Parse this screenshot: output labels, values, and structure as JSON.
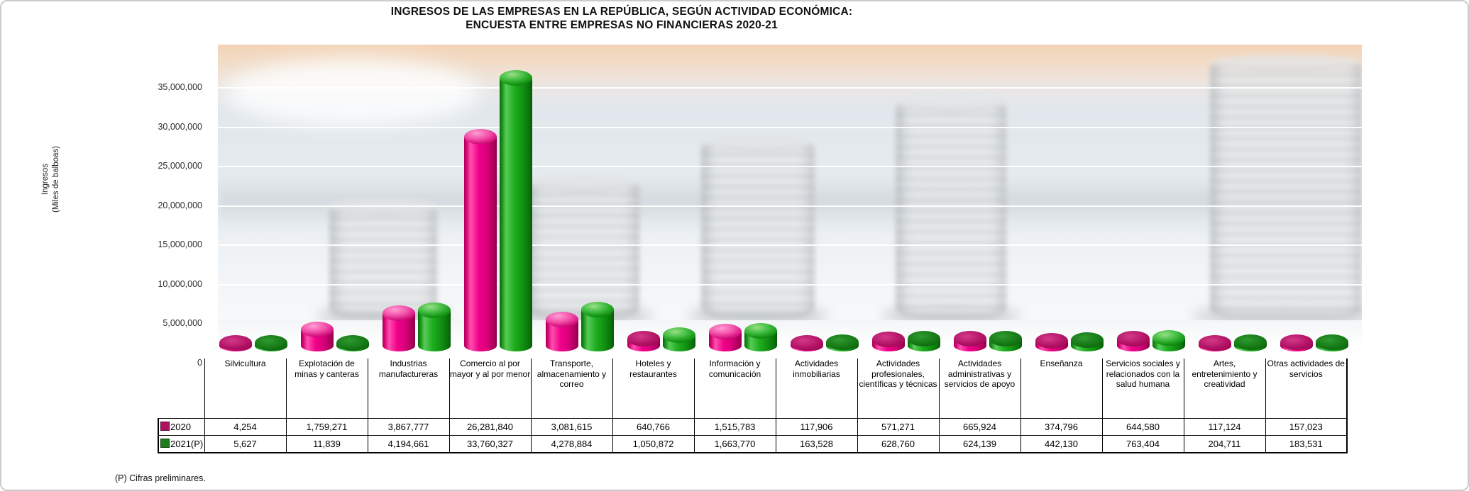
{
  "title": {
    "line1": "INGRESOS DE LAS EMPRESAS EN LA REPÚBLICA, SEGÚN ACTIVIDAD ECONÓMICA:",
    "line2": "ENCUESTA ENTRE EMPRESAS NO FINANCIERAS 2020-21"
  },
  "y_axis": {
    "title_line1": "Ingresos",
    "title_line2": "(Miles de balboas)",
    "tick_labels": [
      "0",
      "5,000,000",
      "10,000,000",
      "15,000,000",
      "20,000,000",
      "25,000,000",
      "30,000,000",
      "35,000,000"
    ]
  },
  "footnote": "(P) Cifras preliminares.",
  "chart_data": {
    "type": "bar",
    "title": "INGRESOS DE LAS EMPRESAS EN LA REPÚBLICA, SEGÚN ACTIVIDAD ECONÓMICA: ENCUESTA ENTRE EMPRESAS NO FINANCIERAS 2020-21",
    "xlabel": "",
    "ylabel": "Ingresos (Miles de balboas)",
    "ylim": [
      0,
      35000000
    ],
    "ytick_step": 5000000,
    "grid": true,
    "legend_position": "table-left",
    "background": "faded photo of coin stacks",
    "categories": [
      "Silvicultura",
      "Explotación de minas y canteras",
      "Industrias manufactureras",
      "Comercio al por mayor y al por menor",
      "Transporte, almacenamiento y correo",
      "Hoteles y restaurantes",
      "Información y comunicación",
      "Actividades inmobiliarias",
      "Actividades profesionales, científicas y técnicas",
      "Actividades administrativas y servicios de apoyo",
      "Enseñanza",
      "Servicios sociales y relacionados con la salud humana",
      "Artes, entretenimiento y creatividad",
      "Otras actividades de servicios"
    ],
    "series": [
      {
        "name": "2020",
        "color": "#e0007f",
        "swatch_color": "#b01261",
        "values": [
          4254,
          1759271,
          3867777,
          26281840,
          3081615,
          640766,
          1515783,
          117906,
          571271,
          665924,
          374796,
          644580,
          117124,
          157023
        ],
        "display_values": [
          "4,254",
          "1,759,271",
          "3,867,777",
          "26,281,840",
          "3,081,615",
          "640,766",
          "1,515,783",
          "117,906",
          "571,271",
          "665,924",
          "374,796",
          "644,580",
          "117,124",
          "157,023"
        ]
      },
      {
        "name": "2021(P)",
        "color": "#17a017",
        "swatch_color": "#1b7d1b",
        "values": [
          5627,
          11839,
          4194661,
          33760327,
          4278884,
          1050872,
          1663770,
          163528,
          628760,
          624139,
          442130,
          763404,
          204711,
          183531
        ],
        "display_values": [
          "5,627",
          "11,839",
          "4,194,661",
          "33,760,327",
          "4,278,884",
          "1,050,872",
          "1,663,770",
          "163,528",
          "628,760",
          "624,139",
          "442,130",
          "763,404",
          "204,711",
          "183,531"
        ]
      }
    ]
  }
}
